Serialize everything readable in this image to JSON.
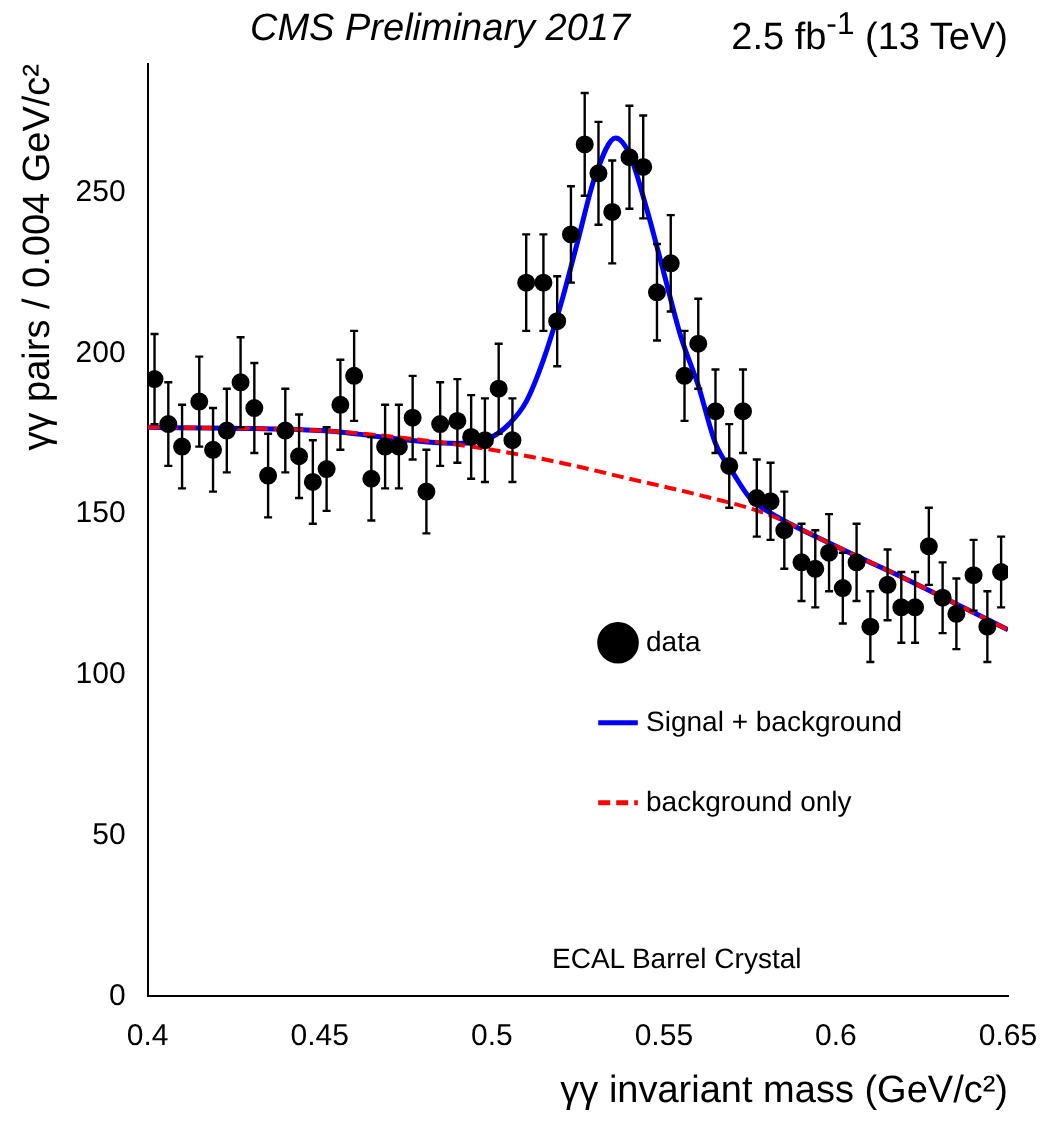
{
  "chart_data": {
    "type": "scatter",
    "title": "CMS Preliminary 2017",
    "subtitle": "2.5 fb$^{-1}$ (13 TeV)",
    "xlabel": "γγ invariant mass (GeV/c²)",
    "ylabel": "γγ pairs / 0.004 GeV/c²",
    "xlim": [
      0.4,
      0.65
    ],
    "xticks": [
      0.4,
      0.45,
      0.5,
      0.55,
      0.6,
      0.65
    ],
    "ylim": [
      0,
      290
    ],
    "yticks": [
      0,
      50,
      100,
      150,
      200,
      250
    ],
    "grid": false,
    "legend": "right",
    "marker": "circle",
    "annotations": [
      "ECAL Barrel Crystal"
    ],
    "series": [
      {
        "name": "background only",
        "type": "line",
        "color": "#ff0000",
        "line_style": "dashed",
        "marker": "none",
        "x": [
          0.4,
          0.45,
          0.48,
          0.5,
          0.52,
          0.54,
          0.56,
          0.58,
          0.6,
          0.62,
          0.65
        ],
        "values": [
          177,
          176,
          173,
          170,
          166,
          161,
          156,
          150,
          140,
          130,
          114
        ]
      },
      {
        "name": "Signal + background",
        "type": "line",
        "color": "#0000ff",
        "line_style": "solid",
        "marker": "none",
        "x": [
          0.4,
          0.45,
          0.49,
          0.5,
          0.505,
          0.51,
          0.515,
          0.52,
          0.525,
          0.53,
          0.536,
          0.54,
          0.545,
          0.55,
          0.555,
          0.56,
          0.565,
          0.57,
          0.575,
          0.58,
          0.6,
          0.62,
          0.65
        ],
        "values": [
          177,
          176,
          172,
          174,
          178,
          185,
          198,
          215,
          235,
          255,
          267,
          262,
          245,
          225,
          205,
          190,
          172,
          163,
          155,
          151,
          140,
          130,
          114
        ]
      },
      {
        "name": "data",
        "color": "#000000",
        "x": [
          0.402,
          0.406,
          0.41,
          0.415,
          0.419,
          0.423,
          0.427,
          0.431,
          0.435,
          0.44,
          0.444,
          0.448,
          0.452,
          0.456,
          0.46,
          0.465,
          0.469,
          0.473,
          0.477,
          0.481,
          0.485,
          0.49,
          0.494,
          0.498,
          0.502,
          0.506,
          0.51,
          0.515,
          0.519,
          0.523,
          0.527,
          0.531,
          0.535,
          0.54,
          0.544,
          0.548,
          0.552,
          0.556,
          0.56,
          0.565,
          0.569,
          0.573,
          0.577,
          0.581,
          0.585,
          0.59,
          0.594,
          0.598,
          0.602,
          0.606,
          0.61,
          0.615,
          0.619,
          0.623,
          0.627,
          0.631,
          0.635,
          0.64,
          0.644,
          0.648
        ],
        "values": [
          192,
          178,
          171,
          185,
          170,
          176,
          191,
          183,
          162,
          176,
          168,
          160,
          164,
          184,
          193,
          161,
          171,
          171,
          180,
          157,
          178,
          179,
          174,
          173,
          189,
          173,
          222,
          222,
          210,
          237,
          265,
          256,
          244,
          261,
          258,
          219,
          228,
          193,
          203,
          182,
          165,
          182,
          155,
          154,
          145,
          135,
          133,
          138,
          127,
          135,
          115,
          128,
          121,
          121,
          140,
          124,
          119,
          131,
          115,
          132
        ],
        "errors": [
          14,
          13,
          13,
          14,
          13,
          13,
          14,
          14,
          13,
          13,
          13,
          13,
          13,
          14,
          14,
          13,
          13,
          13,
          13,
          13,
          13,
          13,
          13,
          13,
          14,
          13,
          15,
          15,
          14,
          15,
          16,
          16,
          16,
          16,
          16,
          15,
          15,
          14,
          14,
          13,
          13,
          13,
          12,
          12,
          12,
          12,
          12,
          12,
          11,
          12,
          11,
          11,
          11,
          11,
          12,
          11,
          11,
          11,
          11,
          11
        ]
      }
    ]
  }
}
